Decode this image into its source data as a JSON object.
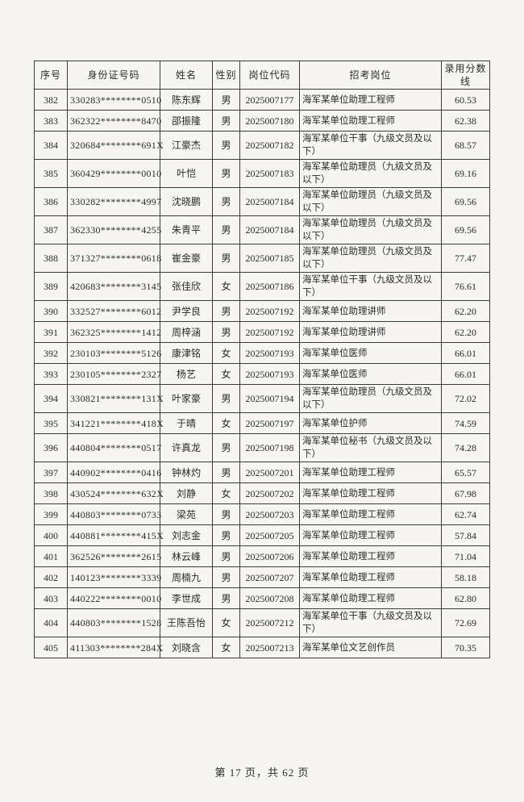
{
  "footer": {
    "text": "第 17 页，共 62 页"
  },
  "table": {
    "headers": [
      "序号",
      "身份证号码",
      "姓名",
      "性别",
      "岗位代码",
      "招考岗位",
      "录用分数线"
    ],
    "rows": [
      {
        "no": "382",
        "id": "330283********0510",
        "name": "陈东辉",
        "gender": "男",
        "code": "2025007177",
        "position": "海军某单位助理工程师",
        "score": "60.53"
      },
      {
        "no": "383",
        "id": "362322********8470",
        "name": "邵振隆",
        "gender": "男",
        "code": "2025007180",
        "position": "海军某单位助理工程师",
        "score": "62.38"
      },
      {
        "no": "384",
        "id": "320684********691X",
        "name": "江豪杰",
        "gender": "男",
        "code": "2025007182",
        "position": "海军某单位干事（九级文员及以下）",
        "score": "68.57"
      },
      {
        "no": "385",
        "id": "360429********0010",
        "name": "叶恺",
        "gender": "男",
        "code": "2025007183",
        "position": "海军某单位助理员（九级文员及以下）",
        "score": "69.16"
      },
      {
        "no": "386",
        "id": "330282********4997",
        "name": "沈晓鹏",
        "gender": "男",
        "code": "2025007184",
        "position": "海军某单位助理员（九级文员及以下）",
        "score": "69.56"
      },
      {
        "no": "387",
        "id": "362330********4255",
        "name": "朱青平",
        "gender": "男",
        "code": "2025007184",
        "position": "海军某单位助理员（九级文员及以下）",
        "score": "69.56"
      },
      {
        "no": "388",
        "id": "371327********0618",
        "name": "崔金豪",
        "gender": "男",
        "code": "2025007185",
        "position": "海军某单位助理员（九级文员及以下）",
        "score": "77.47"
      },
      {
        "no": "389",
        "id": "420683********3145",
        "name": "张佳欣",
        "gender": "女",
        "code": "2025007186",
        "position": "海军某单位干事（九级文员及以下）",
        "score": "76.61"
      },
      {
        "no": "390",
        "id": "332527********6012",
        "name": "尹学良",
        "gender": "男",
        "code": "2025007192",
        "position": "海军某单位助理讲师",
        "score": "62.20"
      },
      {
        "no": "391",
        "id": "362325********1412",
        "name": "周梓涵",
        "gender": "男",
        "code": "2025007192",
        "position": "海军某单位助理讲师",
        "score": "62.20"
      },
      {
        "no": "392",
        "id": "230103********5126",
        "name": "康津铭",
        "gender": "女",
        "code": "2025007193",
        "position": "海军某单位医师",
        "score": "66.01"
      },
      {
        "no": "393",
        "id": "230105********2327",
        "name": "杨艺",
        "gender": "女",
        "code": "2025007193",
        "position": "海军某单位医师",
        "score": "66.01"
      },
      {
        "no": "394",
        "id": "330821********131X",
        "name": "叶家豪",
        "gender": "男",
        "code": "2025007194",
        "position": "海军某单位助理员（九级文员及以下）",
        "score": "72.02"
      },
      {
        "no": "395",
        "id": "341221********418X",
        "name": "于晴",
        "gender": "女",
        "code": "2025007197",
        "position": "海军某单位护师",
        "score": "74.59"
      },
      {
        "no": "396",
        "id": "440804********0517",
        "name": "许真龙",
        "gender": "男",
        "code": "2025007198",
        "position": "海军某单位秘书（九级文员及以下）",
        "score": "74.28"
      },
      {
        "no": "397",
        "id": "440902********0416",
        "name": "钟林灼",
        "gender": "男",
        "code": "2025007201",
        "position": "海军某单位助理工程师",
        "score": "65.57"
      },
      {
        "no": "398",
        "id": "430524********632X",
        "name": "刘静",
        "gender": "女",
        "code": "2025007202",
        "position": "海军某单位助理工程师",
        "score": "67.98"
      },
      {
        "no": "399",
        "id": "440803********0733",
        "name": "梁苑",
        "gender": "男",
        "code": "2025007203",
        "position": "海军某单位助理工程师",
        "score": "62.74"
      },
      {
        "no": "400",
        "id": "440881********415X",
        "name": "刘志金",
        "gender": "男",
        "code": "2025007205",
        "position": "海军某单位助理工程师",
        "score": "57.84"
      },
      {
        "no": "401",
        "id": "362526********2615",
        "name": "林云峰",
        "gender": "男",
        "code": "2025007206",
        "position": "海军某单位助理工程师",
        "score": "71.04"
      },
      {
        "no": "402",
        "id": "140123********3339",
        "name": "周楠九",
        "gender": "男",
        "code": "2025007207",
        "position": "海军某单位助理工程师",
        "score": "58.18"
      },
      {
        "no": "403",
        "id": "440222********0010",
        "name": "李世成",
        "gender": "男",
        "code": "2025007208",
        "position": "海军某单位助理工程师",
        "score": "62.80"
      },
      {
        "no": "404",
        "id": "440803********1528",
        "name": "王陈吾怡",
        "gender": "女",
        "code": "2025007212",
        "position": "海军某单位干事（九级文员及以下）",
        "score": "72.69"
      },
      {
        "no": "405",
        "id": "411303********284X",
        "name": "刘晓含",
        "gender": "女",
        "code": "2025007213",
        "position": "海军某单位文艺创作员",
        "score": "70.35"
      }
    ]
  }
}
